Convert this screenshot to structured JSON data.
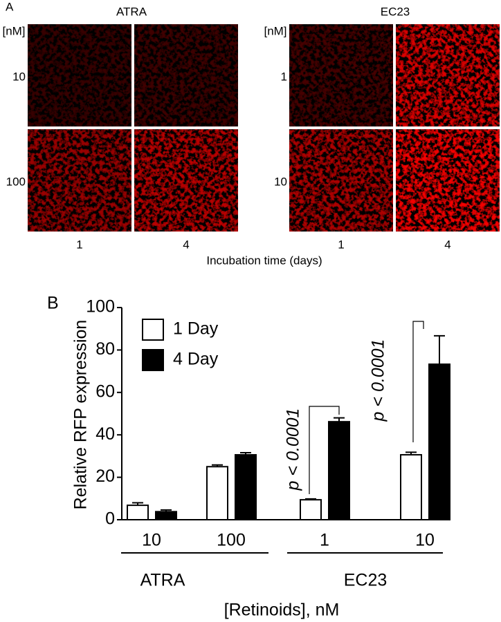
{
  "panel_a": {
    "label": "A",
    "unit_label": "[nM]",
    "x_title": "Incubation time (days)",
    "panels": [
      {
        "title": "ATRA",
        "rows": [
          "10",
          "100"
        ],
        "columns": [
          "1",
          "4"
        ]
      },
      {
        "title": "EC23",
        "rows": [
          "1",
          "10"
        ],
        "columns": [
          "1",
          "4"
        ]
      }
    ]
  },
  "chart_data": {
    "type": "bar",
    "panel_label": "B",
    "y_label": "Relative RFP expression",
    "x_label": "[Retinoids], nM",
    "categories": [
      "10",
      "100",
      "1",
      "10"
    ],
    "groups": [
      "ATRA",
      "EC23"
    ],
    "series": [
      {
        "name": "1 Day",
        "color": "#ffffff",
        "values": [
          6.8,
          25,
          9.4,
          30.6
        ],
        "errors": [
          1.2,
          0.8,
          0.4,
          1.2
        ]
      },
      {
        "name": "4 Day",
        "color": "#000000",
        "values": [
          3.8,
          30.6,
          46.2,
          73.3
        ],
        "errors": [
          0.8,
          1,
          1.8,
          13.4
        ]
      }
    ],
    "annotations": [
      "p < 0.0001",
      "p < 0.0001"
    ],
    "ylim": [
      0,
      100
    ],
    "yticks": [
      0,
      20,
      40,
      60,
      80,
      100
    ]
  }
}
